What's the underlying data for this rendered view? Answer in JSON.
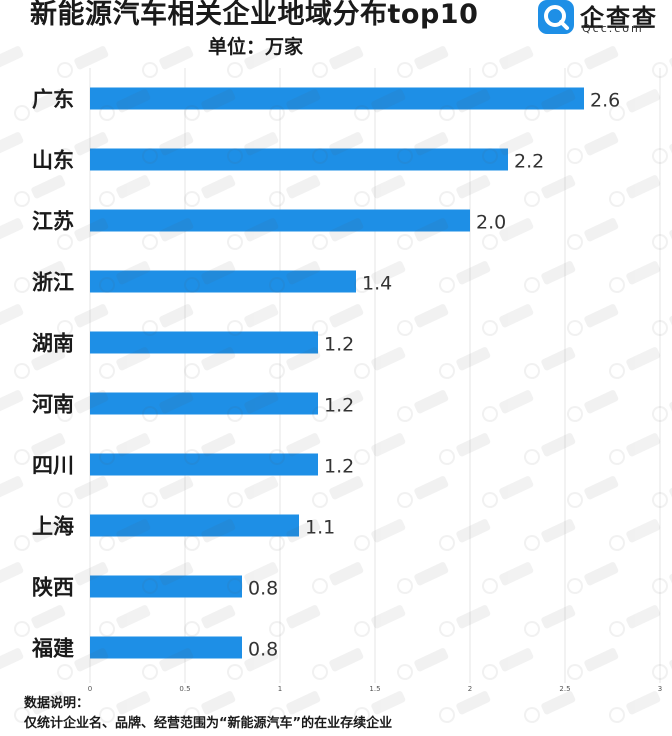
{
  "header": {
    "title": "新能源汽车相关企业地域分布top10",
    "subtitle": "单位：万家"
  },
  "brand": {
    "name": "企查查",
    "domain": "Qcc.com",
    "icon": "qcc-logo-icon",
    "color": "#1e8fe6"
  },
  "footer": {
    "note_title": "数据说明：",
    "note_text": "仅统计企业名、品牌、经营范围为“新能源汽车”的在业存续企业"
  },
  "chart_data": {
    "type": "bar",
    "orientation": "horizontal",
    "title": "新能源汽车相关企业地域分布top10",
    "unit": "单位：万家",
    "categories": [
      "广东",
      "山东",
      "江苏",
      "浙江",
      "湖南",
      "河南",
      "四川",
      "上海",
      "陕西",
      "福建"
    ],
    "values": [
      2.6,
      2.2,
      2.0,
      1.4,
      1.2,
      1.2,
      1.2,
      1.1,
      0.8,
      0.8
    ],
    "value_labels": [
      "2.6",
      "2.2",
      "2.0",
      "1.4",
      "1.2",
      "1.2",
      "1.2",
      "1.1",
      "0.8",
      "0.8"
    ],
    "xlim": [
      0,
      3
    ],
    "xticks": [
      "0",
      "0.5",
      "1",
      "1.5",
      "2",
      "2.5",
      "3"
    ],
    "grid": true,
    "bar_color": "#1e8fe6"
  }
}
